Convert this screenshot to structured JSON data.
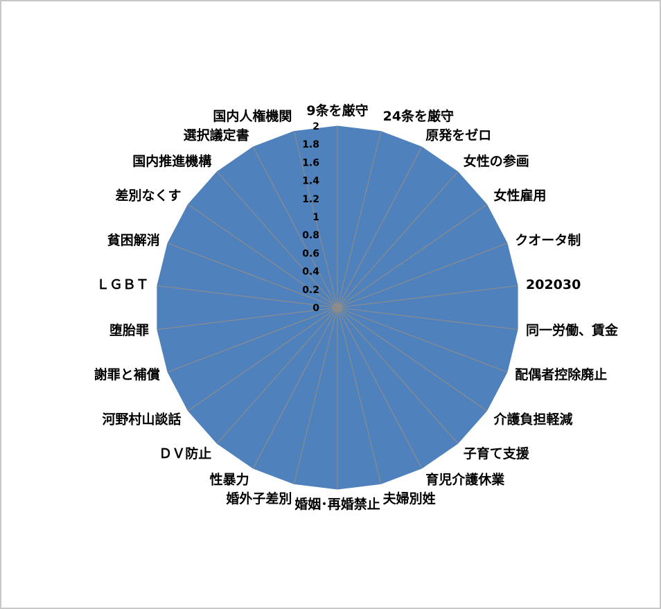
{
  "chart_data": {
    "type": "radar",
    "title": "",
    "categories": [
      "9条を厳守",
      "24条を厳守",
      "原発をゼロ",
      "女性の参画",
      "女性雇用",
      "クオータ制",
      "202030",
      "同一労働、賃金",
      "配偶者控除廃止",
      "介護負担軽減",
      "子育て支援",
      "育児介護休業",
      "夫婦別姓",
      "婚姻･再婚禁止",
      "婚外子差別",
      "性暴力",
      "ＤＶ防止",
      "河野村山談話",
      "謝罪と補償",
      "堕胎罪",
      "ＬＧＢＴ",
      "貧困解消",
      "差別なくす",
      "国内推進機構",
      "選択議定書",
      "国内人権機関"
    ],
    "series": [
      {
        "values": [
          2,
          2,
          2,
          2,
          2,
          2,
          2,
          2,
          2,
          2,
          2,
          2,
          2,
          2,
          2,
          2,
          2,
          2,
          2,
          2,
          2,
          2,
          2,
          2,
          2,
          2
        ],
        "color": "#4f81bd"
      }
    ],
    "rlim": [
      0,
      2
    ],
    "ticks": [
      "0",
      "0.2",
      "0.4",
      "0.6",
      "0.8",
      "1",
      "1.2",
      "1.4",
      "1.6",
      "1.8",
      "2"
    ],
    "grid": true,
    "legend": "none",
    "colors": {
      "fill": "#4f81bd",
      "spokes": "#8c8c8c",
      "frame_border": "#c8c8c8"
    }
  }
}
